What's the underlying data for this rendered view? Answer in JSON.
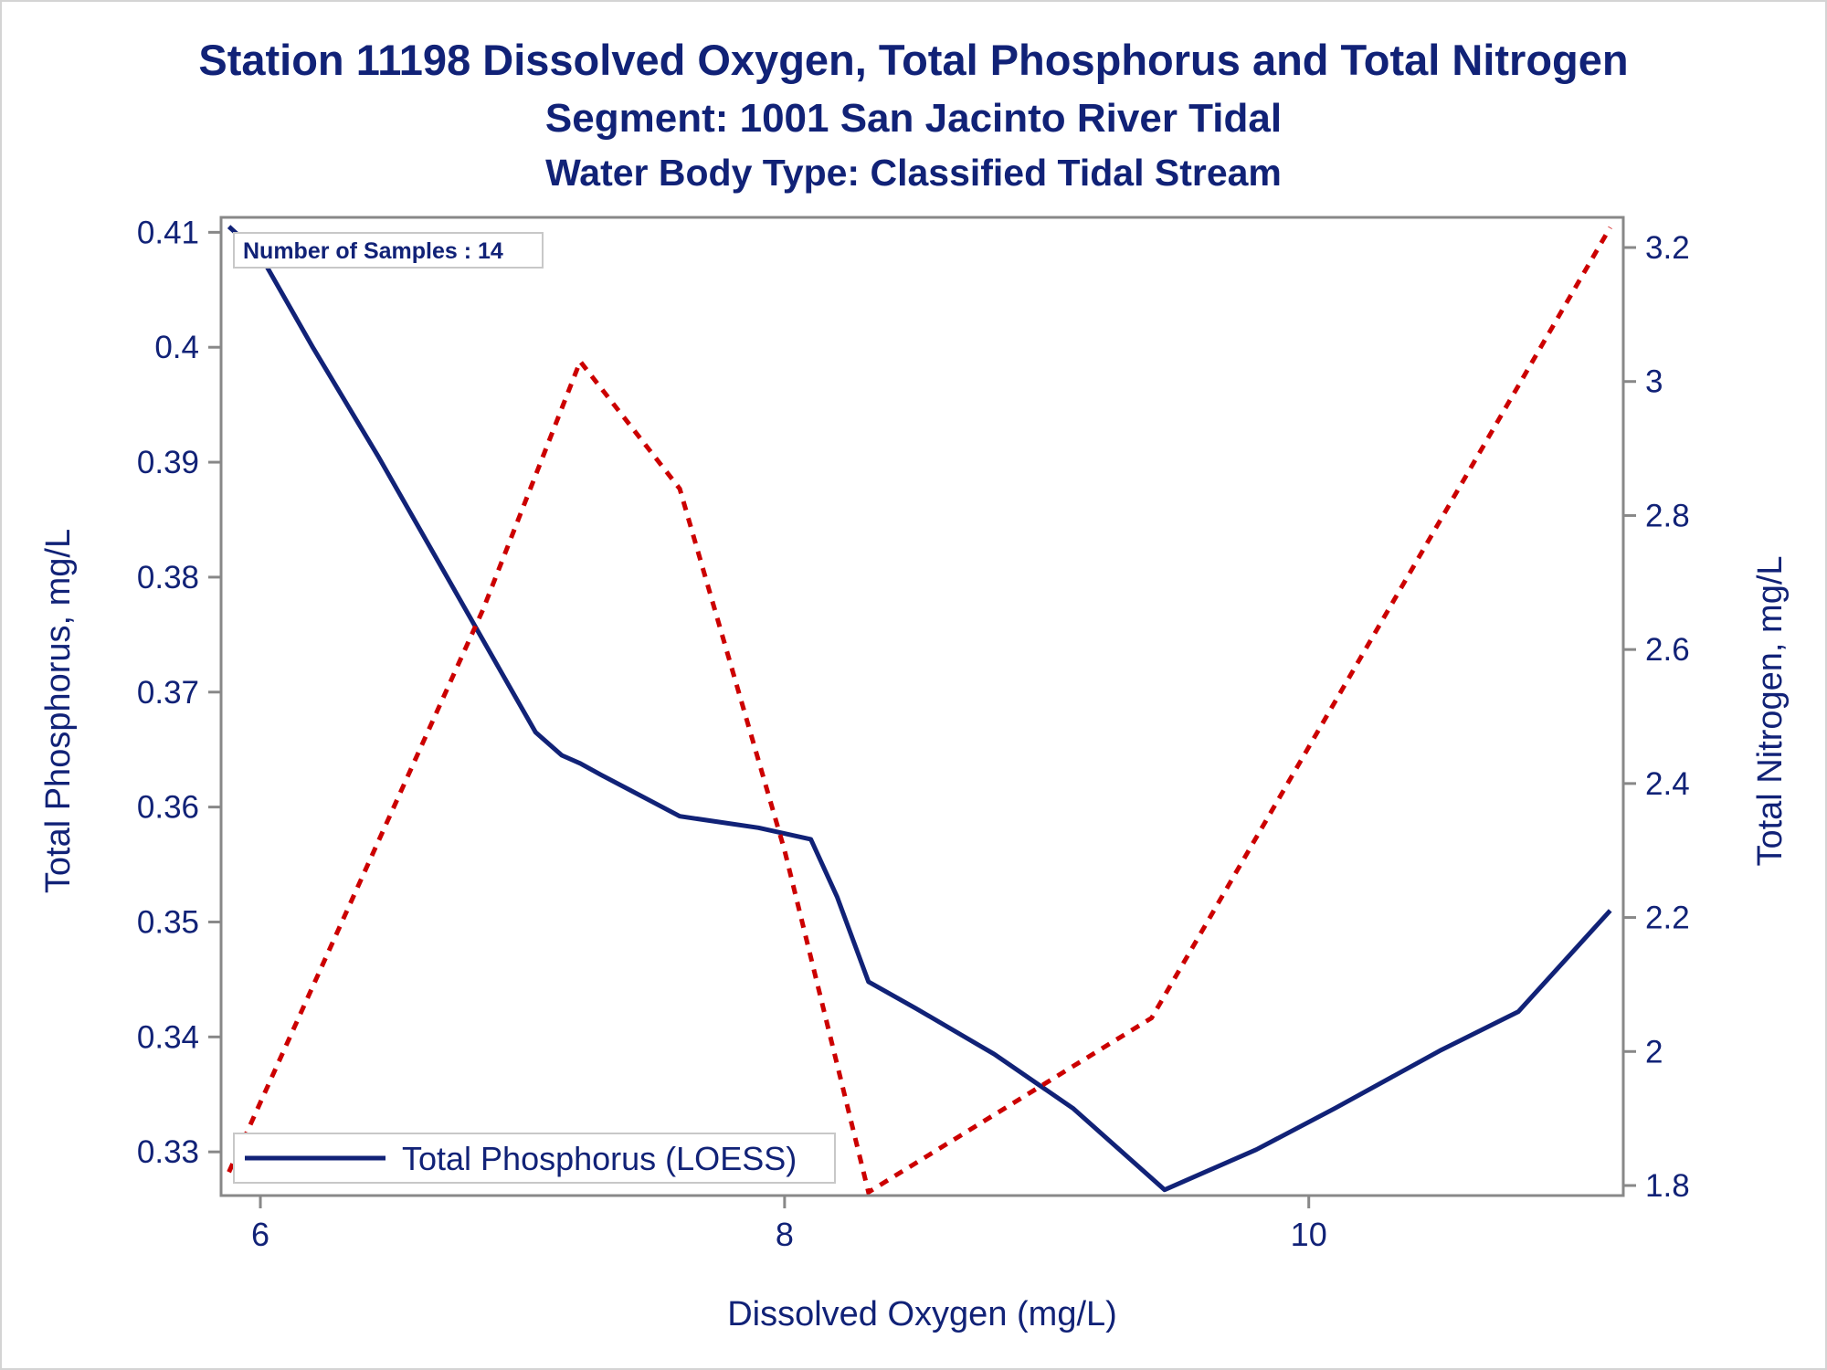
{
  "titles": {
    "line1": "Station 11198  Dissolved Oxygen, Total Phosphorus and Total Nitrogen",
    "line2": "Segment: 1001  San Jacinto River Tidal",
    "line3": "Water Body Type: Classified Tidal Stream"
  },
  "colors": {
    "phosphorus": "#112277",
    "nitrogen": "#cc0000",
    "text": "#112277",
    "axis": "#888888"
  },
  "chart_data": {
    "type": "line",
    "xlabel": "Dissolved Oxygen (mg/L)",
    "ylabel_left": "Total Phosphorus, mg/L",
    "ylabel_right": "Total Nitrogen, mg/L",
    "xlim": [
      5.85,
      11.2
    ],
    "ylim_left": [
      0.3262,
      0.4113
    ],
    "ylim_right": [
      1.785,
      3.245
    ],
    "x_ticks": [
      6,
      8,
      10
    ],
    "y_left_ticks": [
      0.33,
      0.34,
      0.35,
      0.36,
      0.37,
      0.38,
      0.39,
      0.4,
      0.41
    ],
    "y_right_ticks": [
      1.8,
      2,
      2.2,
      2.4,
      2.6,
      2.8,
      3,
      3.2
    ],
    "annotation": "Number of Samples : 14",
    "legend": {
      "position": "bottom-left",
      "entries": [
        "Total Phosphorus (LOESS)"
      ]
    },
    "series": [
      {
        "name": "Total Phosphorus (LOESS)",
        "axis": "left",
        "style": "solid",
        "x": [
          5.88,
          6.0,
          6.2,
          6.45,
          6.7,
          6.95,
          7.05,
          7.15,
          7.22,
          7.3,
          7.4,
          7.5,
          7.6,
          7.75,
          7.9,
          8.1,
          8.2,
          8.32,
          8.5,
          8.8,
          9.1,
          9.45,
          9.6,
          9.8,
          10.1,
          10.5,
          10.8,
          11.15
        ],
        "y": [
          0.4105,
          0.408,
          0.4,
          0.3905,
          0.3805,
          0.3705,
          0.3665,
          0.3645,
          0.3638,
          0.3628,
          0.3616,
          0.3604,
          0.3592,
          0.3587,
          0.3582,
          0.3572,
          0.3522,
          0.3448,
          0.3425,
          0.3385,
          0.3338,
          0.3267,
          0.3282,
          0.3302,
          0.3338,
          0.3388,
          0.3422,
          0.351
        ]
      },
      {
        "name": "Total Nitrogen",
        "axis": "right",
        "style": "dotted",
        "x": [
          5.88,
          6.85,
          7.22,
          7.6,
          8.0,
          8.32,
          9.4,
          11.15
        ],
        "y": [
          1.82,
          2.66,
          3.03,
          2.84,
          2.3,
          1.79,
          2.05,
          3.23
        ]
      }
    ]
  }
}
